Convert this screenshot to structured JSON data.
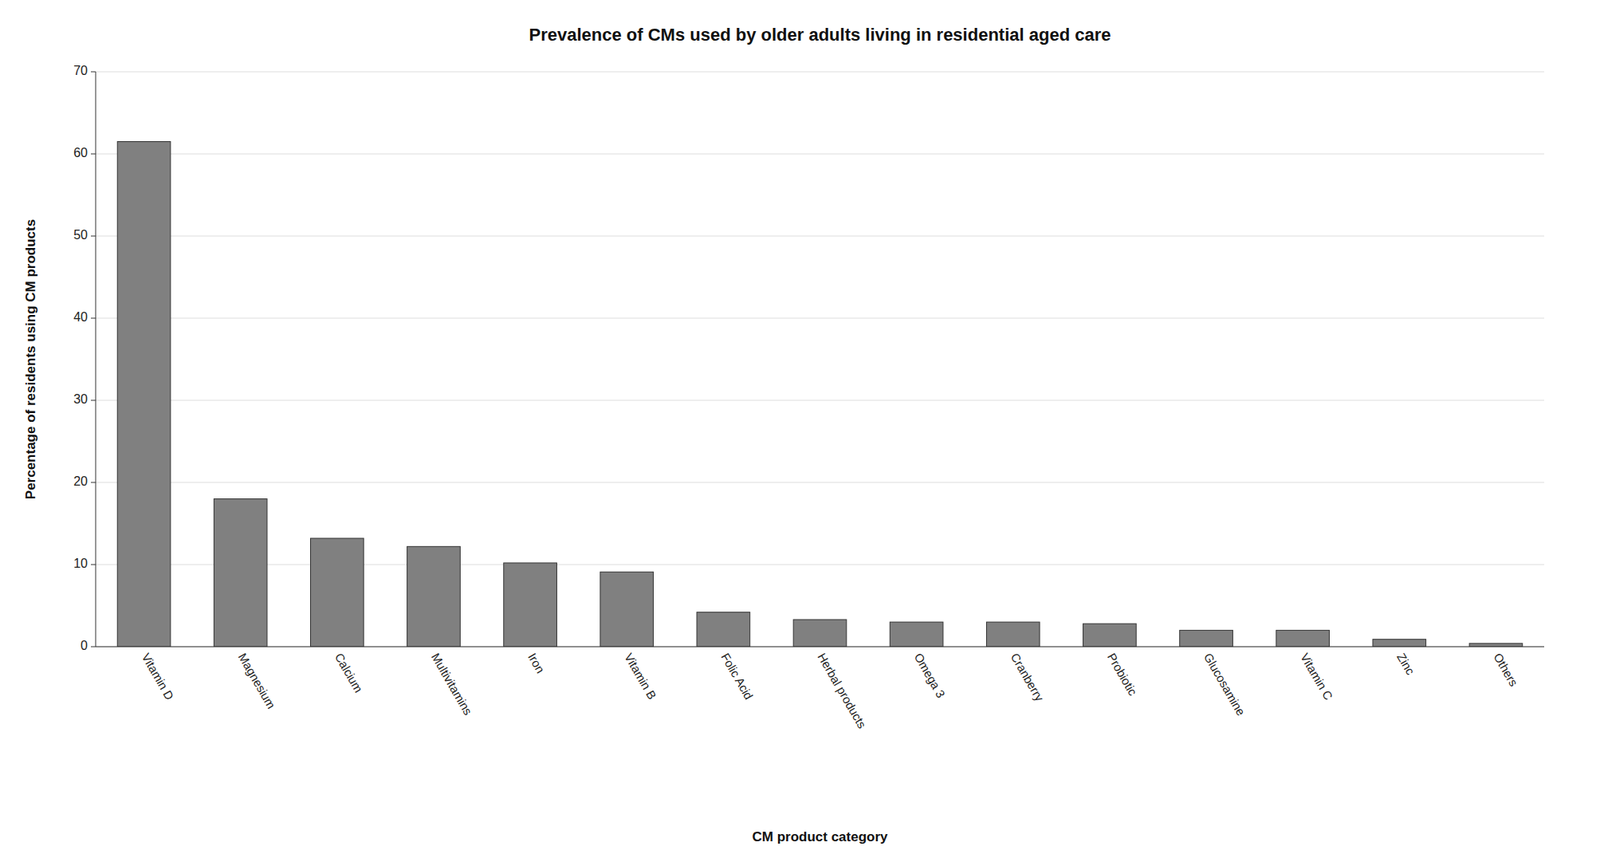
{
  "chart_data": {
    "type": "bar",
    "title": "Prevalence of CMs used by older adults living in residential aged care",
    "xlabel": "CM product category",
    "ylabel": "Percentage of residents using CM products",
    "categories": [
      "Vitamin D",
      "Magnesium",
      "Calcium",
      "Multivitamins",
      "Iron",
      "Vitamin B",
      "Folic Acid",
      "Herbal products",
      "Omega 3",
      "Cranberry",
      "Probiotic",
      "Glucosamine",
      "Vitamin C",
      "Zinc",
      "Others"
    ],
    "values": [
      61.5,
      18.0,
      13.2,
      12.2,
      10.2,
      9.1,
      4.2,
      3.3,
      3.0,
      3.0,
      2.8,
      2.0,
      2.0,
      0.9,
      0.4
    ],
    "color": "#808080",
    "ylim": [
      0,
      70
    ],
    "yticks": [
      0,
      10,
      20,
      30,
      40,
      50,
      60,
      70
    ],
    "grid": true
  }
}
